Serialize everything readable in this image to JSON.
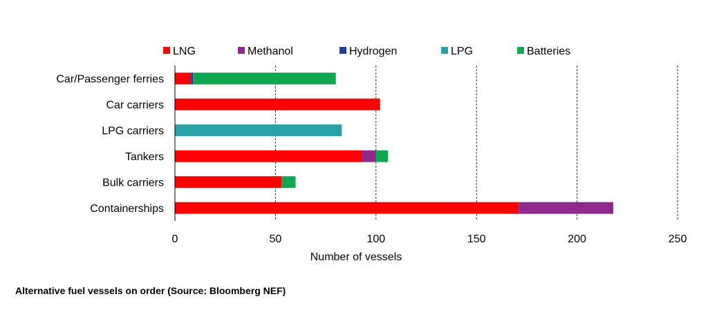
{
  "chart_data": {
    "type": "bar",
    "orientation": "horizontal",
    "stacked": true,
    "categories": [
      "Car/Passenger ferries",
      "Car carriers",
      "LPG carriers",
      "Tankers",
      "Bulk carriers",
      "Containerships"
    ],
    "series": [
      {
        "name": "LNG",
        "color": "#ff0000",
        "values": [
          8,
          102,
          0,
          93,
          53,
          171
        ]
      },
      {
        "name": "Methanol",
        "color": "#8e2a8d",
        "values": [
          0,
          0,
          0,
          7,
          0,
          47
        ]
      },
      {
        "name": "Hydrogen",
        "color": "#1f3d9c",
        "values": [
          1,
          0,
          0,
          0,
          0,
          0
        ]
      },
      {
        "name": "LPG",
        "color": "#2aa1a8",
        "values": [
          0,
          0,
          83,
          0,
          0,
          0
        ]
      },
      {
        "name": "Batteries",
        "color": "#11a650",
        "values": [
          71,
          0,
          0,
          6,
          7,
          0
        ]
      }
    ],
    "xlabel": "Number of vessels",
    "ylabel": "",
    "xlim": [
      0,
      250
    ],
    "xticks": [
      0,
      50,
      100,
      150,
      200,
      250
    ],
    "grid": "vertical dashed",
    "legend": "top"
  },
  "caption": "Alternative fuel vessels on order (Source: Bloomberg NEF)"
}
